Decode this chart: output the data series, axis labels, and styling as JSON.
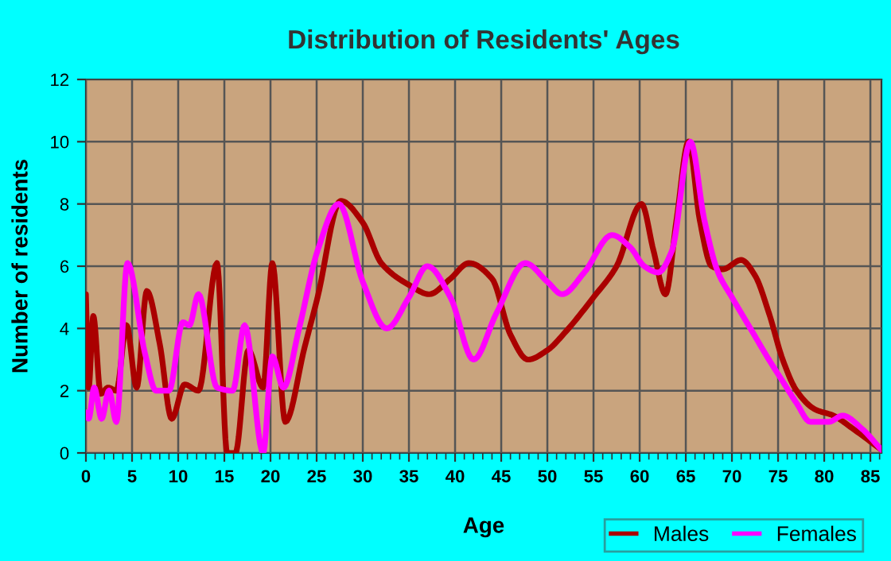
{
  "chart_data": {
    "type": "line",
    "title": "Distribution of Residents' Ages",
    "xlabel": "Age",
    "ylabel": "Number of residents",
    "series": [
      {
        "name": "Males",
        "color": "#aa0000",
        "x": [
          0,
          0.3,
          0.8,
          1.6,
          2.4,
          3.3,
          4.4,
          5.5,
          6.6,
          8,
          9.3,
          10.7,
          12.2,
          14.2,
          15.3,
          16.2,
          17.6,
          19.2,
          20.2,
          21.6,
          23.7,
          25.1,
          27.6,
          30,
          32,
          35,
          37.2,
          39.5,
          41.5,
          44,
          46,
          47.9,
          50,
          52,
          55,
          57.5,
          60.2,
          61.5,
          62.8,
          64,
          65.3,
          66.5,
          67.8,
          69,
          71,
          72.5,
          74,
          75.5,
          77,
          79,
          81,
          83,
          86.2
        ],
        "values": [
          5.1,
          2.1,
          4.4,
          1.9,
          2.1,
          2,
          4.1,
          2.1,
          5.2,
          3.5,
          1.1,
          2.2,
          2,
          6.1,
          0,
          0,
          3.3,
          2.1,
          6.1,
          1,
          3.4,
          5,
          8.1,
          7.4,
          6.1,
          5.4,
          5.1,
          5.6,
          6.1,
          5.6,
          3.8,
          3,
          3.3,
          3.9,
          5,
          6,
          8,
          6.5,
          5.1,
          7.5,
          10,
          7.5,
          6,
          5.9,
          6.2,
          5.7,
          4.5,
          3,
          2,
          1.4,
          1.2,
          0.8,
          0.1
        ]
      },
      {
        "name": "Females",
        "color": "#ff00ff",
        "x": [
          0,
          0.3,
          0.9,
          1.7,
          2.5,
          3.3,
          4.5,
          6.4,
          7.6,
          9,
          10.5,
          11.2,
          12.2,
          14.2,
          15.9,
          17.2,
          19.2,
          20.2,
          21.4,
          23.1,
          25.1,
          27.4,
          30,
          32.6,
          35,
          37,
          39.5,
          42,
          44.5,
          47.6,
          50,
          51.6,
          54,
          57,
          59,
          60.5,
          62,
          63.5,
          65.5,
          67,
          68.5,
          70,
          72,
          74,
          75.5,
          77,
          78.5,
          80.5,
          82,
          84,
          86.2
        ],
        "values": [
          1.3,
          1.1,
          2.1,
          1.1,
          2,
          1,
          6.1,
          3.2,
          2,
          2,
          4.2,
          4.1,
          5.1,
          2.1,
          2,
          4.1,
          0,
          3.1,
          2.1,
          4,
          6.5,
          8,
          5.5,
          4,
          5,
          6,
          5,
          3,
          4.5,
          6.1,
          5.5,
          5.1,
          5.8,
          7,
          6.6,
          6,
          5.8,
          6.5,
          10,
          7.5,
          5.8,
          5,
          4,
          3,
          2.3,
          1.6,
          1,
          1,
          1.2,
          0.8,
          0.1
        ]
      }
    ],
    "xlim": [
      0,
      86.2
    ],
    "xticks": [
      0,
      5,
      10,
      15,
      20,
      25,
      30,
      35,
      40,
      45,
      50,
      55,
      60,
      65,
      70,
      75,
      80,
      85
    ],
    "ylim": [
      0,
      12
    ],
    "yticks": [
      0,
      2,
      4,
      6,
      8,
      10,
      12
    ],
    "grid": true,
    "legend": "bottom right",
    "marker": "none",
    "line_style": "solid"
  }
}
